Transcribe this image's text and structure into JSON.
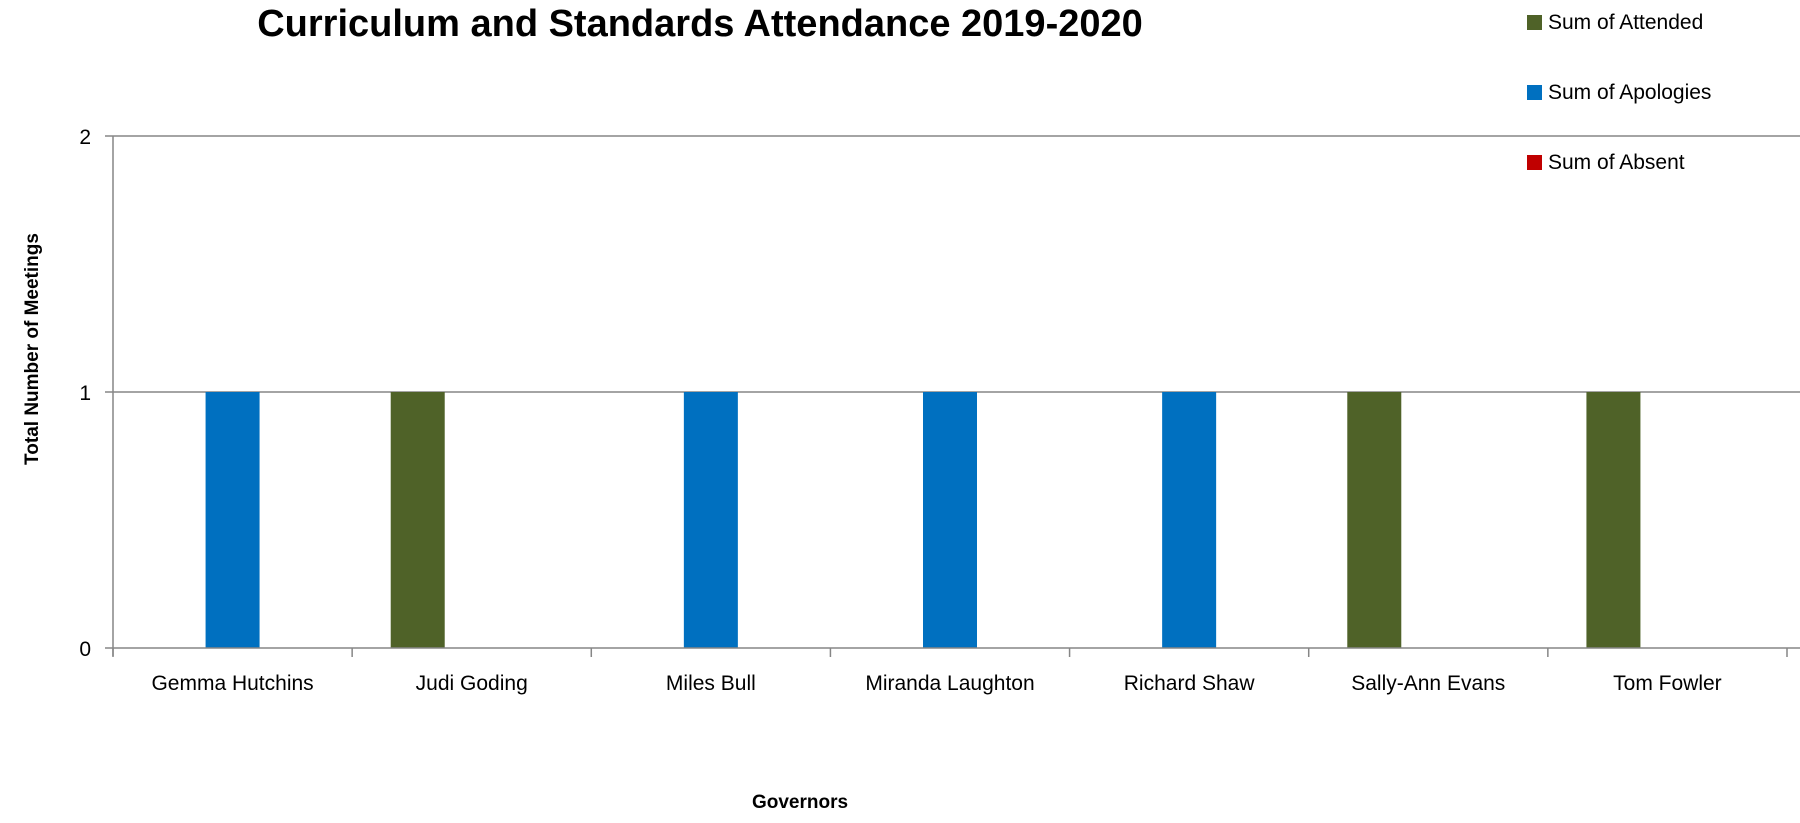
{
  "chart_data": {
    "type": "bar",
    "title": "Curriculum and Standards Attendance 2019-2020",
    "xlabel": "Governors",
    "ylabel": "Total Number of Meetings",
    "categories": [
      "Gemma Hutchins",
      "Judi Goding",
      "Miles Bull",
      "Miranda Laughton",
      "Richard Shaw",
      "Sally-Ann Evans",
      "Tom Fowler"
    ],
    "series": [
      {
        "name": "Sum of Attended",
        "color": "#4f6228",
        "values": [
          0,
          1,
          0,
          0,
          0,
          1,
          1
        ]
      },
      {
        "name": "Sum of Apologies",
        "color": "#0070c0",
        "values": [
          1,
          0,
          1,
          1,
          1,
          0,
          0
        ]
      },
      {
        "name": "Sum of Absent",
        "color": "#c00000",
        "values": [
          0,
          0,
          0,
          0,
          0,
          0,
          0
        ]
      }
    ],
    "ylim": [
      0,
      2
    ],
    "yticks": [
      "0",
      "1",
      "2"
    ],
    "grid": true,
    "legend_position": "top-right"
  }
}
